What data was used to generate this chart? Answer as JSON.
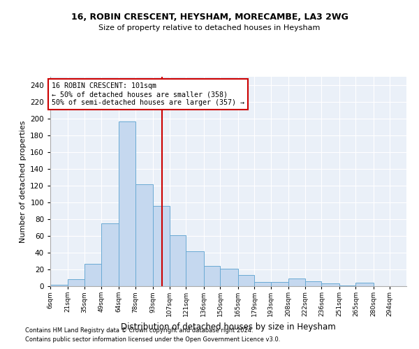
{
  "title1": "16, ROBIN CRESCENT, HEYSHAM, MORECAMBE, LA3 2WG",
  "title2": "Size of property relative to detached houses in Heysham",
  "xlabel": "Distribution of detached houses by size in Heysham",
  "ylabel": "Number of detached properties",
  "bar_color": "#c5d8ef",
  "bar_edge_color": "#6aaad4",
  "annotation_line_color": "#cc0000",
  "annotation_box_color": "#cc0000",
  "annotation_text": "16 ROBIN CRESCENT: 101sqm\n← 50% of detached houses are smaller (358)\n50% of semi-detached houses are larger (357) →",
  "property_line_x": 101,
  "categories": [
    "6sqm",
    "21sqm",
    "35sqm",
    "49sqm",
    "64sqm",
    "78sqm",
    "93sqm",
    "107sqm",
    "121sqm",
    "136sqm",
    "150sqm",
    "165sqm",
    "179sqm",
    "193sqm",
    "208sqm",
    "222sqm",
    "236sqm",
    "251sqm",
    "265sqm",
    "280sqm",
    "294sqm"
  ],
  "bin_left_edges": [
    6,
    21,
    35,
    49,
    64,
    78,
    93,
    107,
    121,
    136,
    150,
    165,
    179,
    193,
    208,
    222,
    236,
    251,
    265,
    280,
    294
  ],
  "bin_widths": [
    15,
    14,
    14,
    15,
    14,
    15,
    14,
    14,
    15,
    14,
    15,
    14,
    14,
    15,
    14,
    14,
    15,
    14,
    15,
    14,
    14
  ],
  "values": [
    2,
    8,
    27,
    75,
    197,
    122,
    96,
    61,
    42,
    24,
    21,
    13,
    5,
    5,
    9,
    6,
    3,
    1,
    4,
    0,
    0
  ],
  "ylim": [
    0,
    250
  ],
  "yticks": [
    0,
    20,
    40,
    60,
    80,
    100,
    120,
    140,
    160,
    180,
    200,
    220,
    240
  ],
  "background_color": "#eaf0f8",
  "grid_color": "#ffffff",
  "footer1": "Contains HM Land Registry data © Crown copyright and database right 2024.",
  "footer2": "Contains public sector information licensed under the Open Government Licence v3.0."
}
